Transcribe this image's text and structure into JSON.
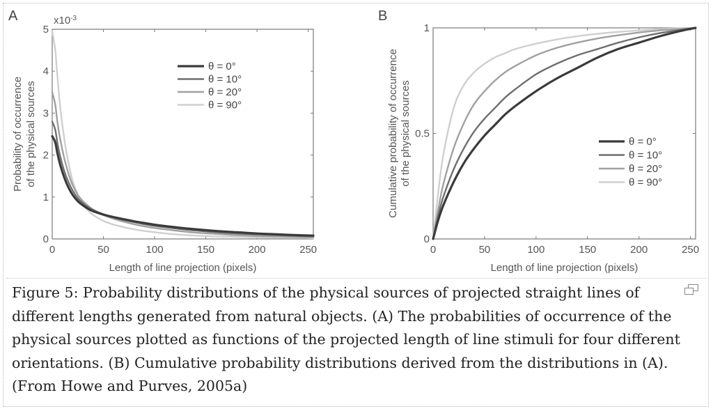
{
  "chart_data": [
    {
      "panel": "A",
      "type": "line",
      "xlabel": "Length of line projection (pixels)",
      "ylabel_lines": [
        "Probability of occurrence",
        "of the physical sources"
      ],
      "y_multiplier": "x10",
      "y_multiplier_exp": "-3",
      "xlim": [
        0,
        255
      ],
      "ylim": [
        0,
        5
      ],
      "xticks": [
        0,
        50,
        100,
        150,
        200,
        250
      ],
      "yticks": [
        0,
        1,
        2,
        3,
        4,
        5
      ],
      "legend_position": "top-center",
      "x": [
        0,
        3,
        5,
        8,
        12,
        16,
        20,
        25,
        30,
        35,
        40,
        50,
        60,
        70,
        80,
        90,
        100,
        120,
        140,
        160,
        180,
        200,
        220,
        240,
        255
      ],
      "series": [
        {
          "name": "θ = 0°",
          "color": "#3a3a3a",
          "width": 3.2,
          "values": [
            2.45,
            2.3,
            2.05,
            1.75,
            1.45,
            1.22,
            1.05,
            0.9,
            0.8,
            0.72,
            0.66,
            0.58,
            0.52,
            0.47,
            0.42,
            0.38,
            0.34,
            0.28,
            0.23,
            0.19,
            0.16,
            0.13,
            0.11,
            0.09,
            0.08
          ]
        },
        {
          "name": "θ = 10°",
          "color": "#6e6e6e",
          "width": 2.4,
          "values": [
            2.8,
            2.6,
            2.3,
            1.95,
            1.6,
            1.35,
            1.15,
            0.97,
            0.85,
            0.76,
            0.69,
            0.59,
            0.51,
            0.45,
            0.4,
            0.35,
            0.31,
            0.25,
            0.2,
            0.16,
            0.13,
            0.11,
            0.09,
            0.07,
            0.06
          ]
        },
        {
          "name": "θ = 20°",
          "color": "#a0a0a0",
          "width": 2.4,
          "values": [
            3.5,
            3.2,
            2.8,
            2.35,
            1.9,
            1.55,
            1.28,
            1.05,
            0.9,
            0.79,
            0.7,
            0.57,
            0.48,
            0.41,
            0.35,
            0.3,
            0.26,
            0.2,
            0.15,
            0.12,
            0.09,
            0.07,
            0.06,
            0.05,
            0.04
          ]
        },
        {
          "name": "θ = 90°",
          "color": "#cfcfcf",
          "width": 2.4,
          "values": [
            4.95,
            4.5,
            3.9,
            3.1,
            2.35,
            1.8,
            1.38,
            1.05,
            0.83,
            0.68,
            0.57,
            0.43,
            0.34,
            0.28,
            0.23,
            0.19,
            0.16,
            0.11,
            0.08,
            0.06,
            0.05,
            0.04,
            0.03,
            0.03,
            0.02
          ]
        }
      ]
    },
    {
      "panel": "B",
      "type": "line",
      "xlabel": "Length of line projection (pixels)",
      "ylabel_lines": [
        "Cumulative probability of occurrence",
        "of the physical sources"
      ],
      "xlim": [
        0,
        255
      ],
      "ylim": [
        0,
        1
      ],
      "xticks": [
        0,
        50,
        100,
        150,
        200,
        250
      ],
      "yticks": [
        0,
        0.5,
        1
      ],
      "ytick_labels": [
        "0",
        "0.5",
        "1"
      ],
      "legend_position": "center-right",
      "x": [
        0,
        5,
        10,
        20,
        30,
        40,
        50,
        60,
        70,
        80,
        100,
        120,
        140,
        160,
        180,
        200,
        220,
        240,
        255
      ],
      "series": [
        {
          "name": "θ = 0°",
          "color": "#3a3a3a",
          "width": 3.2,
          "values": [
            0,
            0.09,
            0.16,
            0.27,
            0.36,
            0.43,
            0.49,
            0.54,
            0.59,
            0.63,
            0.7,
            0.76,
            0.81,
            0.86,
            0.9,
            0.93,
            0.96,
            0.985,
            1.0
          ]
        },
        {
          "name": "θ = 10°",
          "color": "#6e6e6e",
          "width": 2.4,
          "values": [
            0,
            0.11,
            0.2,
            0.33,
            0.43,
            0.51,
            0.57,
            0.62,
            0.67,
            0.71,
            0.78,
            0.83,
            0.87,
            0.9,
            0.93,
            0.955,
            0.975,
            0.99,
            1.0
          ]
        },
        {
          "name": "θ = 20°",
          "color": "#a0a0a0",
          "width": 2.4,
          "values": [
            0,
            0.14,
            0.26,
            0.43,
            0.55,
            0.64,
            0.7,
            0.75,
            0.79,
            0.82,
            0.87,
            0.905,
            0.93,
            0.95,
            0.965,
            0.978,
            0.988,
            0.995,
            1.0
          ]
        },
        {
          "name": "θ = 90°",
          "color": "#cfcfcf",
          "width": 2.4,
          "values": [
            0,
            0.22,
            0.4,
            0.62,
            0.73,
            0.79,
            0.83,
            0.86,
            0.88,
            0.9,
            0.925,
            0.945,
            0.96,
            0.972,
            0.981,
            0.988,
            0.994,
            0.998,
            1.0
          ]
        }
      ]
    }
  ],
  "caption": "Figure 5: Probability distributions of the physical sources of projected straight lines of different lengths generated from natural objects. (A) The probabilities of occurrence of the physical sources plotted as functions of the projected length of line stimuli for four different orientations. (B) Cumulative probability distributions derived from the distributions in (A). (From Howe and Purves, 2005a)",
  "icons": {
    "expand": "expand-figure-icon"
  }
}
